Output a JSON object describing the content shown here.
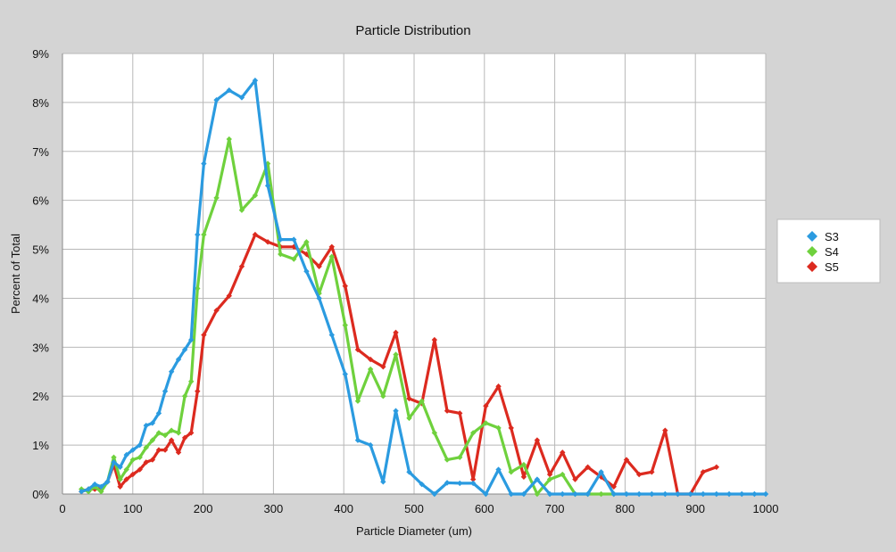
{
  "chart_data": {
    "type": "line",
    "title": "Particle Distribution",
    "xlabel": "Particle Diameter (um)",
    "ylabel": "Percent of Total",
    "xlim": [
      0,
      1000
    ],
    "ylim": [
      0,
      9
    ],
    "xticks": [
      "0",
      "100",
      "200",
      "300",
      "400",
      "500",
      "600",
      "700",
      "800",
      "900",
      "1000"
    ],
    "yticks": [
      "0%",
      "1%",
      "2%",
      "3%",
      "4%",
      "5%",
      "6%",
      "7%",
      "8%",
      "9%"
    ],
    "grid": true,
    "legend_position": "right",
    "series": [
      {
        "name": "S3",
        "color": "#2b9be0",
        "x": [
          27,
          37,
          46,
          55,
          64,
          73,
          82,
          91,
          100,
          110,
          119,
          128,
          137,
          146,
          155,
          165,
          174,
          183,
          192,
          201,
          219,
          237,
          255,
          274,
          292,
          310,
          329,
          347,
          365,
          383,
          402,
          420,
          438,
          456,
          474,
          493,
          511,
          529,
          547,
          565,
          584,
          602,
          620,
          638,
          656,
          675,
          693,
          711,
          729,
          747,
          766,
          784,
          802,
          820,
          838,
          857,
          875,
          893,
          911,
          930,
          948,
          966,
          984,
          1000
        ],
        "values": [
          0.05,
          0.1,
          0.2,
          0.15,
          0.25,
          0.65,
          0.55,
          0.8,
          0.9,
          1.0,
          1.4,
          1.45,
          1.65,
          2.1,
          2.5,
          2.75,
          2.95,
          3.15,
          5.3,
          6.75,
          8.05,
          8.25,
          8.1,
          8.45,
          6.3,
          5.2,
          5.2,
          4.55,
          4.0,
          3.25,
          2.45,
          1.1,
          1.0,
          0.25,
          1.7,
          0.45,
          0.2,
          0.0,
          0.23,
          0.22,
          0.22,
          0.0,
          0.5,
          0.0,
          0.0,
          0.3,
          0.0,
          0.0,
          0.0,
          0.0,
          0.45,
          0.0,
          0.0,
          0.0,
          0.0,
          0.0,
          0.0,
          0.0,
          0.0,
          0.0,
          0.0,
          0.0,
          0.0,
          0.0
        ]
      },
      {
        "name": "S4",
        "color": "#6fd13d",
        "x": [
          27,
          37,
          46,
          55,
          64,
          73,
          82,
          91,
          100,
          110,
          119,
          128,
          137,
          146,
          155,
          165,
          174,
          183,
          192,
          201,
          219,
          237,
          255,
          274,
          292,
          310,
          329,
          347,
          365,
          383,
          402,
          420,
          438,
          456,
          474,
          493,
          511,
          529,
          547,
          565,
          584,
          602,
          620,
          638,
          656,
          675,
          693,
          711,
          729,
          747,
          766,
          784
        ],
        "values": [
          0.1,
          0.05,
          0.15,
          0.05,
          0.25,
          0.75,
          0.3,
          0.5,
          0.7,
          0.75,
          0.95,
          1.1,
          1.25,
          1.2,
          1.3,
          1.25,
          2.0,
          2.3,
          4.2,
          5.3,
          6.05,
          7.25,
          5.8,
          6.1,
          6.75,
          4.9,
          4.8,
          5.15,
          4.1,
          4.85,
          3.45,
          1.9,
          2.55,
          2.0,
          2.85,
          1.55,
          1.9,
          1.25,
          0.7,
          0.75,
          1.25,
          1.45,
          1.35,
          0.45,
          0.6,
          0.0,
          0.3,
          0.4,
          0.0,
          0.0,
          0.0,
          0.0
        ]
      },
      {
        "name": "S5",
        "color": "#dc2a1f",
        "x": [
          27,
          37,
          46,
          55,
          64,
          73,
          82,
          91,
          100,
          110,
          119,
          128,
          137,
          146,
          155,
          165,
          174,
          183,
          192,
          201,
          219,
          237,
          255,
          274,
          292,
          310,
          329,
          347,
          365,
          383,
          402,
          420,
          438,
          456,
          474,
          493,
          511,
          529,
          547,
          565,
          584,
          602,
          620,
          638,
          656,
          675,
          693,
          711,
          729,
          747,
          766,
          784,
          802,
          820,
          838,
          857,
          875,
          893,
          911,
          930
        ],
        "values": [
          0.05,
          0.1,
          0.1,
          0.12,
          0.25,
          0.6,
          0.15,
          0.3,
          0.4,
          0.5,
          0.65,
          0.7,
          0.9,
          0.9,
          1.1,
          0.85,
          1.15,
          1.25,
          2.1,
          3.25,
          3.75,
          4.05,
          4.65,
          5.3,
          5.15,
          5.05,
          5.05,
          4.9,
          4.65,
          5.05,
          4.25,
          2.95,
          2.75,
          2.6,
          3.3,
          1.95,
          1.85,
          3.15,
          1.7,
          1.65,
          0.3,
          1.8,
          2.2,
          1.35,
          0.35,
          1.1,
          0.4,
          0.85,
          0.3,
          0.55,
          0.35,
          0.15,
          0.7,
          0.4,
          0.45,
          1.3,
          0.0,
          0.0,
          0.45,
          0.55
        ]
      }
    ]
  }
}
